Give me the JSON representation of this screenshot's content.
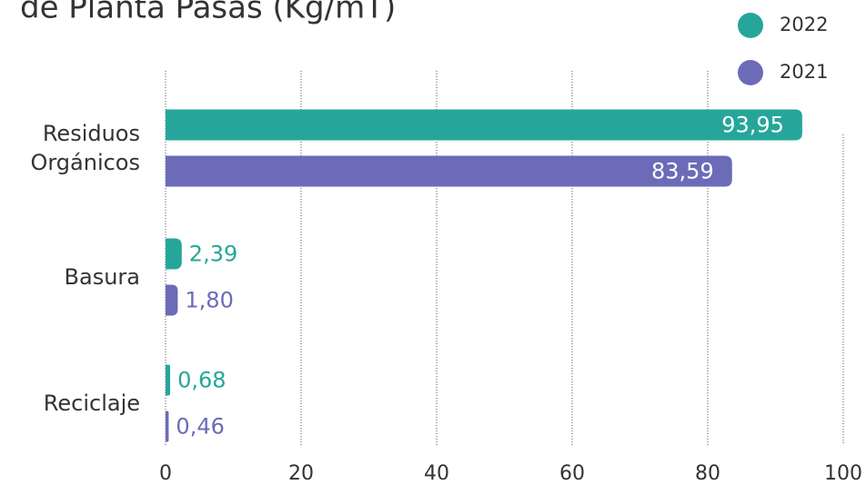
{
  "chart_data": {
    "type": "bar",
    "orientation": "horizontal",
    "title": "de Planta Pasas (Kg/mT)",
    "categories": [
      "Residuos Orgánicos",
      "Basura",
      "Reciclaje"
    ],
    "series": [
      {
        "name": "2022",
        "color": "#26a69a",
        "values": [
          93.95,
          2.39,
          0.68
        ],
        "value_labels": [
          "93,95",
          "2,39",
          "0,68"
        ]
      },
      {
        "name": "2021",
        "color": "#6b6bb8",
        "values": [
          83.59,
          1.8,
          0.46
        ],
        "value_labels": [
          "83,59",
          "1,80",
          "0,46"
        ]
      }
    ],
    "xlim": [
      0,
      100
    ],
    "xticks": [
      0,
      20,
      40,
      60,
      80,
      100
    ],
    "grid": true,
    "legend": "top-right"
  }
}
